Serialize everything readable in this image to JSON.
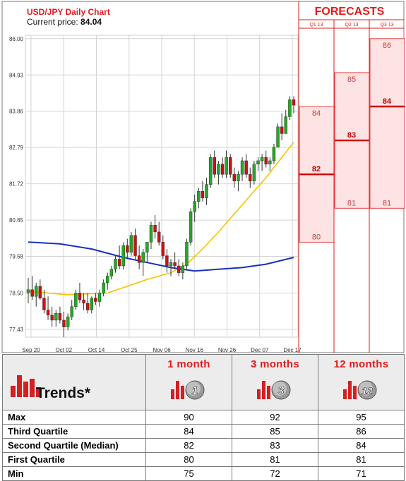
{
  "chart_data": {
    "type": "candlestick",
    "title": "USD/JPY Daily Chart",
    "price_label": "Current price:",
    "current_price": "84.04",
    "ylim": [
      77.2,
      86.1
    ],
    "yticks": [
      "86.00",
      "84.93",
      "83.86",
      "82.79",
      "81.72",
      "80.65",
      "79.58",
      "78.50",
      "77.43"
    ],
    "xticks": [
      "Sep 20",
      "Oct 02",
      "Oct 14",
      "Oct 25",
      "Nov 06",
      "Nov 16",
      "Nov 26",
      "Dec 07",
      "Dec 17"
    ],
    "candles": [
      {
        "o": 78.5,
        "h": 78.95,
        "l": 78.2,
        "c": 78.6
      },
      {
        "o": 78.6,
        "h": 79.0,
        "l": 78.3,
        "c": 78.4
      },
      {
        "o": 78.4,
        "h": 78.8,
        "l": 78.1,
        "c": 78.7
      },
      {
        "o": 78.7,
        "h": 78.9,
        "l": 78.3,
        "c": 78.35
      },
      {
        "o": 78.35,
        "h": 78.6,
        "l": 77.9,
        "c": 78.0
      },
      {
        "o": 78.0,
        "h": 78.4,
        "l": 77.7,
        "c": 77.85
      },
      {
        "o": 77.85,
        "h": 78.1,
        "l": 77.5,
        "c": 77.7
      },
      {
        "o": 77.7,
        "h": 78.0,
        "l": 77.5,
        "c": 77.9
      },
      {
        "o": 77.9,
        "h": 78.1,
        "l": 77.6,
        "c": 77.7
      },
      {
        "o": 77.7,
        "h": 77.95,
        "l": 77.2,
        "c": 77.5
      },
      {
        "o": 77.5,
        "h": 77.9,
        "l": 77.4,
        "c": 77.8
      },
      {
        "o": 77.8,
        "h": 78.3,
        "l": 77.7,
        "c": 78.1
      },
      {
        "o": 78.1,
        "h": 78.6,
        "l": 78.0,
        "c": 78.5
      },
      {
        "o": 78.5,
        "h": 78.8,
        "l": 78.2,
        "c": 78.3
      },
      {
        "o": 78.3,
        "h": 78.5,
        "l": 78.0,
        "c": 78.2
      },
      {
        "o": 78.2,
        "h": 78.5,
        "l": 77.9,
        "c": 78.0
      },
      {
        "o": 78.0,
        "h": 78.4,
        "l": 77.9,
        "c": 78.35
      },
      {
        "o": 78.35,
        "h": 78.5,
        "l": 78.15,
        "c": 78.25
      },
      {
        "o": 78.25,
        "h": 78.6,
        "l": 78.1,
        "c": 78.5
      },
      {
        "o": 78.5,
        "h": 78.9,
        "l": 78.4,
        "c": 78.8
      },
      {
        "o": 78.8,
        "h": 79.1,
        "l": 78.6,
        "c": 79.0
      },
      {
        "o": 79.0,
        "h": 79.3,
        "l": 78.9,
        "c": 79.2
      },
      {
        "o": 79.2,
        "h": 79.6,
        "l": 79.1,
        "c": 79.5
      },
      {
        "o": 79.5,
        "h": 79.9,
        "l": 79.2,
        "c": 79.3
      },
      {
        "o": 79.3,
        "h": 80.0,
        "l": 79.2,
        "c": 79.9
      },
      {
        "o": 79.9,
        "h": 80.1,
        "l": 79.5,
        "c": 79.7
      },
      {
        "o": 79.7,
        "h": 80.3,
        "l": 79.6,
        "c": 80.2
      },
      {
        "o": 80.2,
        "h": 80.4,
        "l": 79.5,
        "c": 79.6
      },
      {
        "o": 79.6,
        "h": 79.9,
        "l": 79.2,
        "c": 79.4
      },
      {
        "o": 79.4,
        "h": 79.8,
        "l": 79.0,
        "c": 79.7
      },
      {
        "o": 79.7,
        "h": 80.0,
        "l": 79.4,
        "c": 80.0
      },
      {
        "o": 80.0,
        "h": 80.6,
        "l": 79.8,
        "c": 80.5
      },
      {
        "o": 80.5,
        "h": 80.8,
        "l": 80.1,
        "c": 80.3
      },
      {
        "o": 80.3,
        "h": 80.6,
        "l": 79.9,
        "c": 80.0
      },
      {
        "o": 80.0,
        "h": 80.2,
        "l": 79.5,
        "c": 79.6
      },
      {
        "o": 79.6,
        "h": 79.8,
        "l": 79.1,
        "c": 79.3
      },
      {
        "o": 79.3,
        "h": 79.5,
        "l": 79.0,
        "c": 79.4
      },
      {
        "o": 79.4,
        "h": 79.7,
        "l": 79.2,
        "c": 79.3
      },
      {
        "o": 79.3,
        "h": 79.5,
        "l": 79.0,
        "c": 79.1
      },
      {
        "o": 79.1,
        "h": 79.4,
        "l": 78.9,
        "c": 79.3
      },
      {
        "o": 79.3,
        "h": 80.1,
        "l": 79.2,
        "c": 80.0
      },
      {
        "o": 80.0,
        "h": 81.0,
        "l": 79.9,
        "c": 80.9
      },
      {
        "o": 80.9,
        "h": 81.4,
        "l": 80.6,
        "c": 81.2
      },
      {
        "o": 81.2,
        "h": 81.6,
        "l": 81.0,
        "c": 81.5
      },
      {
        "o": 81.5,
        "h": 81.8,
        "l": 81.2,
        "c": 81.3
      },
      {
        "o": 81.3,
        "h": 81.9,
        "l": 81.1,
        "c": 81.7
      },
      {
        "o": 81.7,
        "h": 82.6,
        "l": 81.6,
        "c": 82.5
      },
      {
        "o": 82.5,
        "h": 82.7,
        "l": 81.9,
        "c": 82.0
      },
      {
        "o": 82.0,
        "h": 82.4,
        "l": 81.7,
        "c": 82.3
      },
      {
        "o": 82.3,
        "h": 82.5,
        "l": 81.9,
        "c": 82.0
      },
      {
        "o": 82.0,
        "h": 82.7,
        "l": 81.9,
        "c": 82.5
      },
      {
        "o": 82.5,
        "h": 82.6,
        "l": 81.9,
        "c": 82.0
      },
      {
        "o": 82.0,
        "h": 82.2,
        "l": 81.6,
        "c": 81.8
      },
      {
        "o": 81.8,
        "h": 82.1,
        "l": 81.5,
        "c": 82.0
      },
      {
        "o": 82.0,
        "h": 82.5,
        "l": 81.8,
        "c": 82.4
      },
      {
        "o": 82.4,
        "h": 82.6,
        "l": 81.9,
        "c": 82.0
      },
      {
        "o": 82.0,
        "h": 82.2,
        "l": 81.6,
        "c": 81.8
      },
      {
        "o": 81.8,
        "h": 82.4,
        "l": 81.7,
        "c": 82.3
      },
      {
        "o": 82.3,
        "h": 82.5,
        "l": 82.1,
        "c": 82.4
      },
      {
        "o": 82.4,
        "h": 82.6,
        "l": 82.1,
        "c": 82.5
      },
      {
        "o": 82.5,
        "h": 82.7,
        "l": 82.2,
        "c": 82.3
      },
      {
        "o": 82.3,
        "h": 82.5,
        "l": 82.1,
        "c": 82.4
      },
      {
        "o": 82.4,
        "h": 82.9,
        "l": 82.3,
        "c": 82.8
      },
      {
        "o": 82.8,
        "h": 83.5,
        "l": 82.8,
        "c": 83.4
      },
      {
        "o": 83.4,
        "h": 83.8,
        "l": 83.0,
        "c": 83.2
      },
      {
        "o": 83.2,
        "h": 83.9,
        "l": 83.2,
        "c": 83.7
      },
      {
        "o": 83.7,
        "h": 84.3,
        "l": 83.6,
        "c": 84.2
      },
      {
        "o": 84.2,
        "h": 84.3,
        "l": 83.8,
        "c": 84.04
      }
    ],
    "ma_yellow": [
      [
        0,
        78.55
      ],
      [
        10,
        78.45
      ],
      [
        20,
        78.5
      ],
      [
        30,
        78.9
      ],
      [
        36,
        79.1
      ],
      [
        40,
        79.35
      ],
      [
        44,
        79.8
      ],
      [
        48,
        80.3
      ],
      [
        54,
        81.1
      ],
      [
        60,
        81.9
      ],
      [
        64,
        82.5
      ],
      [
        67,
        82.95
      ]
    ],
    "ma_blue": [
      [
        0,
        80.0
      ],
      [
        8,
        79.95
      ],
      [
        16,
        79.8
      ],
      [
        24,
        79.55
      ],
      [
        30,
        79.4
      ],
      [
        36,
        79.25
      ],
      [
        42,
        79.15
      ],
      [
        48,
        79.2
      ],
      [
        54,
        79.25
      ],
      [
        60,
        79.35
      ],
      [
        67,
        79.55
      ]
    ],
    "colors": {
      "up": "#22aa22",
      "down": "#cc1111",
      "ma_short": "#f5c400",
      "ma_long": "#1a2fbf",
      "accent": "#e31b1b"
    }
  },
  "forecasts": {
    "title": "FORECASTS",
    "columns": [
      {
        "label": "Q1 13",
        "max": "84",
        "median": "82",
        "min": "80",
        "max_v": 84,
        "median_v": 82,
        "min_v": 80
      },
      {
        "label": "Q2 13",
        "max": "85",
        "median": "83",
        "min": "81",
        "max_v": 85,
        "median_v": 83,
        "min_v": 81
      },
      {
        "label": "Q3 13",
        "max": "86",
        "median": "84",
        "min": "81",
        "max_v": 86,
        "median_v": 84,
        "min_v": 81
      }
    ]
  },
  "trends": {
    "title": "Trends*",
    "horizons": [
      "1 month",
      "3 months",
      "12 months"
    ],
    "badges": [
      "1",
      "3",
      "12"
    ],
    "rows": [
      {
        "label": "Max",
        "values": [
          "90",
          "92",
          "95"
        ]
      },
      {
        "label": "Third Quartile",
        "values": [
          "84",
          "85",
          "86"
        ]
      },
      {
        "label": "Second Quartile (Median)",
        "values": [
          "82",
          "83",
          "84"
        ]
      },
      {
        "label": "First Quartile",
        "values": [
          "80",
          "81",
          "81"
        ]
      },
      {
        "label": "Min",
        "values": [
          "75",
          "72",
          "71"
        ]
      }
    ]
  }
}
